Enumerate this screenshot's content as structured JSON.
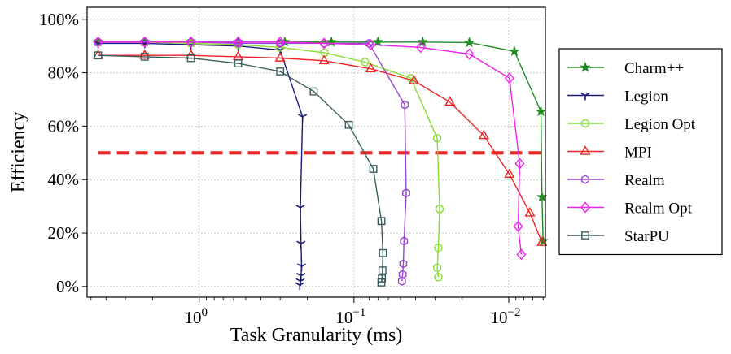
{
  "chart_data": {
    "type": "line",
    "xlabel": "Task Granularity (ms)",
    "ylabel": "Efficiency",
    "x_scale": "log",
    "x_reversed": true,
    "xlim": [
      5.3,
      0.0058
    ],
    "ylim": [
      -0.04,
      1.045
    ],
    "x_ticks": [
      {
        "value": 1,
        "base": "10",
        "exp": "0"
      },
      {
        "value": 0.1,
        "base": "10",
        "exp": "−1"
      },
      {
        "value": 0.01,
        "base": "10",
        "exp": "−2"
      }
    ],
    "y_ticks": [
      {
        "value": 0.0,
        "label": "0%"
      },
      {
        "value": 0.2,
        "label": "20%"
      },
      {
        "value": 0.4,
        "label": "40%"
      },
      {
        "value": 0.6,
        "label": "60%"
      },
      {
        "value": 0.8,
        "label": "80%"
      },
      {
        "value": 1.0,
        "label": "100%"
      }
    ],
    "grid": true,
    "legend_position": "right-outside",
    "threshold": {
      "value": 0.5,
      "color": "#ee2222"
    },
    "series": [
      {
        "name": "Charm++",
        "color": "#228b22",
        "marker": "star",
        "x": [
          4.5,
          2.25,
          1.13,
          0.56,
          0.28,
          0.14,
          0.07,
          0.036,
          0.018,
          0.0092,
          0.0062,
          0.0061,
          0.006
        ],
        "y": [
          0.915,
          0.915,
          0.915,
          0.915,
          0.915,
          0.915,
          0.915,
          0.915,
          0.913,
          0.88,
          0.655,
          0.335,
          0.17
        ]
      },
      {
        "name": "Legion",
        "color": "#1a1a7a",
        "marker": "tri_down",
        "x": [
          4.5,
          2.25,
          1.13,
          0.56,
          0.3,
          0.215,
          0.222,
          0.22,
          0.218,
          0.22,
          0.222,
          0.224
        ],
        "y": [
          0.91,
          0.91,
          0.905,
          0.9,
          0.885,
          0.635,
          0.295,
          0.16,
          0.075,
          0.04,
          0.02,
          0.005
        ]
      },
      {
        "name": "Legion Opt",
        "color": "#88dd33",
        "marker": "circle",
        "x": [
          4.5,
          2.25,
          1.13,
          0.56,
          0.3,
          0.155,
          0.085,
          0.043,
          0.029,
          0.028,
          0.0285,
          0.029,
          0.0285
        ],
        "y": [
          0.915,
          0.915,
          0.91,
          0.905,
          0.895,
          0.875,
          0.84,
          0.78,
          0.555,
          0.29,
          0.145,
          0.07,
          0.035
        ]
      },
      {
        "name": "MPI",
        "color": "#ee2222",
        "marker": "triangle",
        "x": [
          4.5,
          2.25,
          1.13,
          0.56,
          0.3,
          0.156,
          0.078,
          0.041,
          0.024,
          0.0145,
          0.0099,
          0.0073,
          0.0061
        ],
        "y": [
          0.865,
          0.865,
          0.865,
          0.86,
          0.855,
          0.845,
          0.815,
          0.77,
          0.69,
          0.565,
          0.42,
          0.275,
          0.165
        ]
      },
      {
        "name": "Realm",
        "color": "#9944cc",
        "marker": "hexagon",
        "x": [
          4.5,
          2.25,
          1.13,
          0.56,
          0.3,
          0.156,
          0.08,
          0.047,
          0.046,
          0.0475,
          0.048,
          0.0485,
          0.049
        ],
        "y": [
          0.915,
          0.915,
          0.915,
          0.91,
          0.91,
          0.91,
          0.91,
          0.68,
          0.35,
          0.17,
          0.085,
          0.045,
          0.02
        ]
      },
      {
        "name": "Realm Opt",
        "color": "#ee22ee",
        "marker": "diamond",
        "x": [
          4.5,
          2.25,
          1.13,
          0.56,
          0.3,
          0.156,
          0.078,
          0.037,
          0.018,
          0.0099,
          0.0085,
          0.0087,
          0.0083
        ],
        "y": [
          0.915,
          0.915,
          0.915,
          0.915,
          0.915,
          0.91,
          0.905,
          0.895,
          0.87,
          0.78,
          0.46,
          0.225,
          0.12
        ]
      },
      {
        "name": "StarPU",
        "color": "#3d5e5e",
        "marker": "square",
        "x": [
          4.5,
          2.25,
          1.13,
          0.56,
          0.3,
          0.182,
          0.108,
          0.075,
          0.0665,
          0.065,
          0.0655,
          0.066,
          0.0665
        ],
        "y": [
          0.865,
          0.86,
          0.855,
          0.835,
          0.805,
          0.73,
          0.605,
          0.44,
          0.245,
          0.125,
          0.06,
          0.03,
          0.015
        ]
      }
    ]
  }
}
